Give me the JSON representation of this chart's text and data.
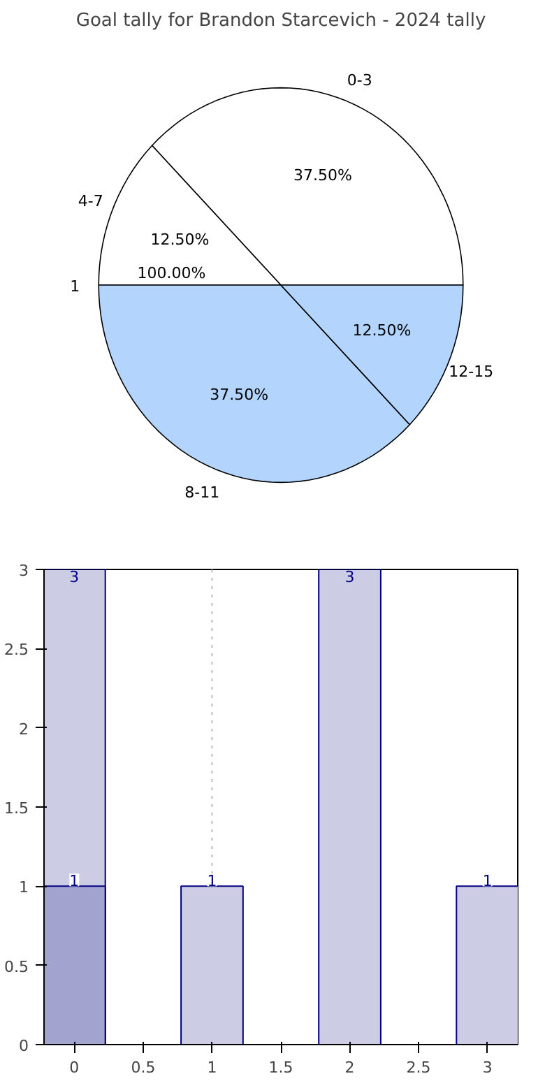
{
  "chart_data": [
    {
      "type": "pie",
      "title": "Goal tally for Brandon Starcevich - 2024 tally",
      "categories": [
        "0-3",
        "4-7",
        "8-11",
        "12-15"
      ],
      "values": [
        37.5,
        12.5,
        37.5,
        12.5
      ],
      "colors": [
        "#ffffff",
        "#ffffff",
        "#b3d4fc",
        "#b3d4fc"
      ],
      "value_labels": [
        "37.50%",
        "12.50%",
        "37.50%",
        "12.50%"
      ],
      "annotations": [
        "1",
        "100.00%"
      ]
    },
    {
      "type": "bar",
      "x": [
        0,
        1,
        2,
        3
      ],
      "series": [
        {
          "color": "#cccce5",
          "values": [
            3,
            1,
            3,
            1
          ]
        },
        {
          "color": "#a3a3d0",
          "values": [
            1,
            null,
            null,
            null
          ]
        }
      ],
      "data_labels": true,
      "xlim": [
        -0.22,
        3.22
      ],
      "xticks": [
        0,
        0.5,
        1,
        1.5,
        2,
        2.5,
        3
      ],
      "ylim": [
        0,
        3
      ],
      "yticks": [
        0,
        0.5,
        1,
        1.5,
        2,
        2.5,
        3
      ],
      "ref_lines": [
        {
          "axis": "x",
          "value": 1,
          "color": "#bbbbbb",
          "line_style": "dotted"
        }
      ]
    }
  ]
}
